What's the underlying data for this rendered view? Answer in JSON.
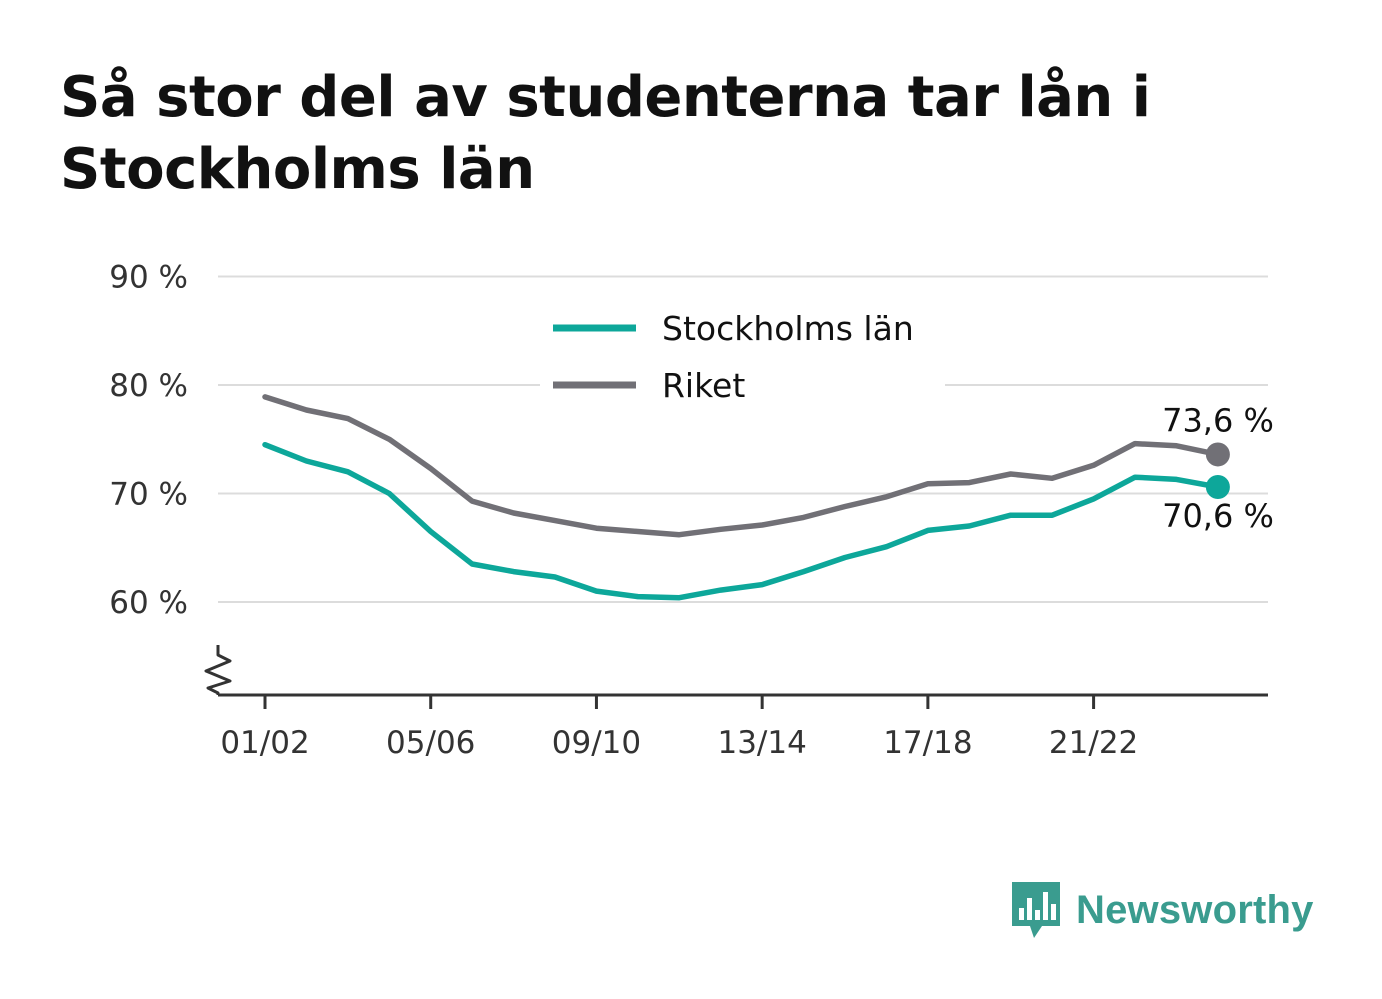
{
  "title": "Så stor del av studenterna tar lån i Stockholms län",
  "brand": {
    "name": "Newsworthy",
    "color": "#3a9c8f",
    "icon": "bar-chart-speech-bubble-icon"
  },
  "chart_data": {
    "type": "line",
    "x": [
      "01/02",
      "02/03",
      "03/04",
      "04/05",
      "05/06",
      "06/07",
      "07/08",
      "08/09",
      "09/10",
      "10/11",
      "11/12",
      "12/13",
      "13/14",
      "14/15",
      "15/16",
      "16/17",
      "17/18",
      "18/19",
      "19/20",
      "20/21",
      "21/22",
      "22/23",
      "23/24",
      "24/25"
    ],
    "xticks": [
      "01/02",
      "05/06",
      "09/10",
      "13/14",
      "17/18",
      "21/22"
    ],
    "yticks": [
      60,
      70,
      80,
      90
    ],
    "ytick_labels": [
      "60 %",
      "70 %",
      "80 %",
      "90 %"
    ],
    "ylim": [
      51,
      90
    ],
    "axis_break": true,
    "grid": true,
    "legend_position": "top-center",
    "series": [
      {
        "name": "Stockholms län",
        "color": "#0da79a",
        "values": [
          74.5,
          73.0,
          72.0,
          70.0,
          66.5,
          63.5,
          62.8,
          62.3,
          61.0,
          60.5,
          60.4,
          61.1,
          61.6,
          62.8,
          64.1,
          65.1,
          66.6,
          67.0,
          68.0,
          68.0,
          69.5,
          71.5,
          71.3,
          70.6
        ],
        "end_label": "70,6 %"
      },
      {
        "name": "Riket",
        "color": "#717076",
        "values": [
          78.9,
          77.7,
          76.9,
          75.0,
          72.3,
          69.3,
          68.2,
          67.5,
          66.8,
          66.5,
          66.2,
          66.7,
          67.1,
          67.8,
          68.8,
          69.7,
          70.9,
          71.0,
          71.8,
          71.4,
          72.6,
          74.6,
          74.4,
          73.6
        ],
        "end_label": "73,6 %"
      }
    ]
  }
}
